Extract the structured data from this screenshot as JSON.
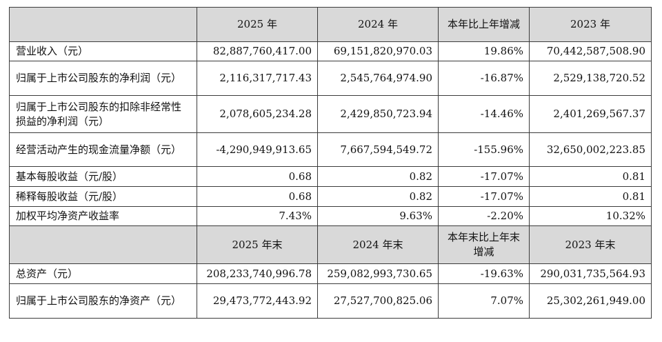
{
  "header1": {
    "col1": "2025 年",
    "col2": "2024 年",
    "col3": "本年比上年增减",
    "col4": "2023 年"
  },
  "header2": {
    "col1": "2025 年末",
    "col2": "2024 年末",
    "col3": "本年末比上年末增减",
    "col4": "2023 年末"
  },
  "rows": [
    {
      "label": "营业收入（元）",
      "v2025": "82,887,760,417.00",
      "v2024": "69,151,820,970.03",
      "change": "19.86%",
      "v2023": "70,442,587,508.90"
    },
    {
      "label": "归属于上市公司股东的净利润（元）",
      "v2025": "2,116,317,717.43",
      "v2024": "2,545,764,974.90",
      "change": "-16.87%",
      "v2023": "2,529,138,720.52"
    },
    {
      "label": "归属于上市公司股东的扣除非经常性损益的净利润（元）",
      "v2025": "2,078,605,234.28",
      "v2024": "2,429,850,723.94",
      "change": "-14.46%",
      "v2023": "2,401,269,567.37"
    },
    {
      "label": "经营活动产生的现金流量净额（元）",
      "v2025": "-4,290,949,913.65",
      "v2024": "7,667,594,549.72",
      "change": "-155.96%",
      "v2023": "32,650,002,223.85"
    },
    {
      "label": "基本每股收益（元/股）",
      "v2025": "0.68",
      "v2024": "0.82",
      "change": "-17.07%",
      "v2023": "0.81"
    },
    {
      "label": "稀释每股收益（元/股）",
      "v2025": "0.68",
      "v2024": "0.82",
      "change": "-17.07%",
      "v2023": "0.81"
    },
    {
      "label": "加权平均净资产收益率",
      "v2025": "7.43%",
      "v2024": "9.63%",
      "change": "-2.20%",
      "v2023": "10.32%"
    }
  ],
  "rows2": [
    {
      "label": "总资产（元）",
      "v2025": "208,233,740,996.78",
      "v2024": "259,082,993,730.65",
      "change": "-19.63%",
      "v2023": "290,031,735,564.93"
    },
    {
      "label": "归属于上市公司股东的净资产（元）",
      "v2025": "29,473,772,443.92",
      "v2024": "27,527,700,825.06",
      "change": "7.07%",
      "v2023": "25,302,261,949.00"
    }
  ]
}
